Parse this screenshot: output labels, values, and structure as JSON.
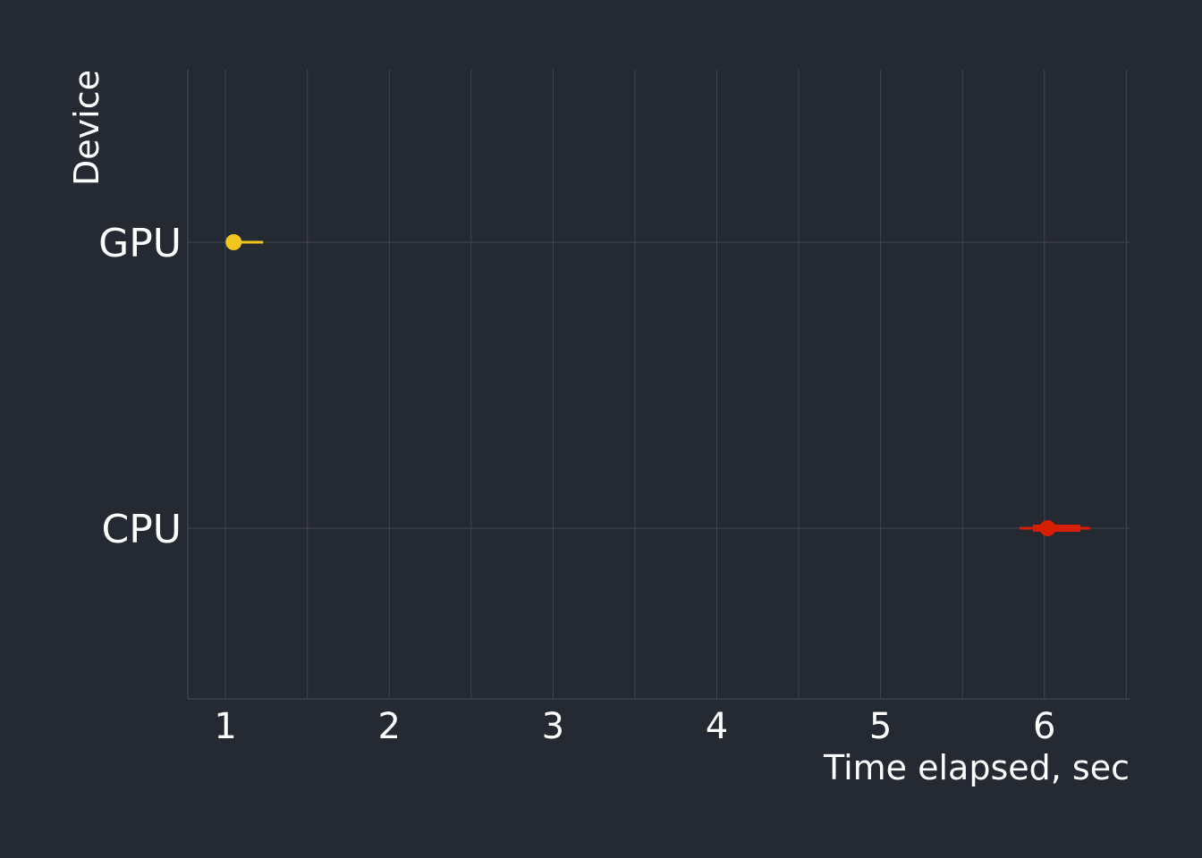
{
  "chart_data": {
    "type": "interval",
    "xlabel": "Time elapsed, sec",
    "ylabel": "Device",
    "xlim": [
      0.77,
      6.52
    ],
    "x_ticks": [
      1,
      2,
      3,
      4,
      5,
      6
    ],
    "grid": true,
    "legend": "none",
    "series": [
      {
        "name": "GPU",
        "point": 1.05,
        "inner_interval": [
          1.03,
          1.07
        ],
        "outer_interval": [
          1.03,
          1.23
        ],
        "color": "#F0C51E"
      },
      {
        "name": "CPU",
        "point": 6.02,
        "inner_interval": [
          5.93,
          6.22
        ],
        "outer_interval": [
          5.85,
          6.28
        ],
        "color": "#D71F03"
      }
    ]
  },
  "colors": {
    "background": "#252932",
    "grid": "#41454D",
    "text": "#FFFFFF"
  }
}
